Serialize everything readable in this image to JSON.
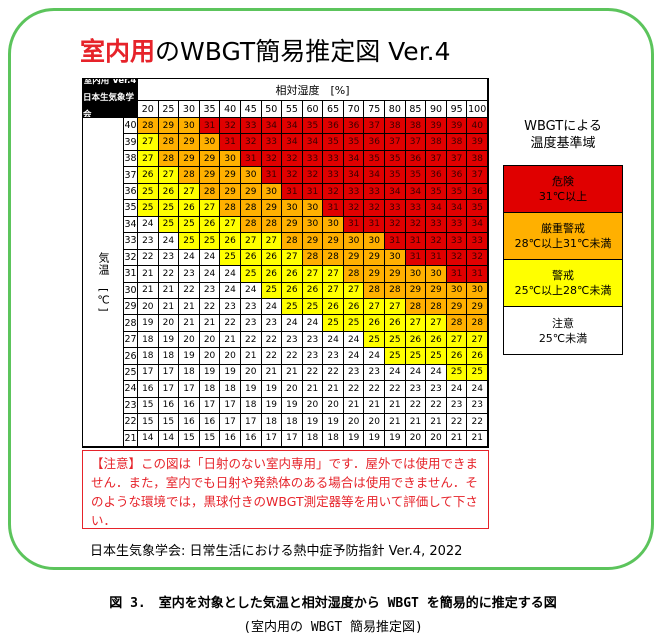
{
  "title": {
    "highlight": "室内用",
    "rest": "のWBGT簡易推定図 Ver.4"
  },
  "table": {
    "corner_line1": "室内用 Ver.4",
    "corner_line2": "日本生気象学会",
    "humidity_label": "相対湿度　[%]",
    "temperature_label": "気温　[℃]",
    "humidity": [
      "20",
      "25",
      "30",
      "35",
      "40",
      "45",
      "50",
      "55",
      "60",
      "65",
      "70",
      "75",
      "80",
      "85",
      "90",
      "95",
      "100"
    ],
    "temperatures": [
      "40",
      "39",
      "38",
      "37",
      "36",
      "35",
      "34",
      "33",
      "32",
      "31",
      "30",
      "29",
      "28",
      "27",
      "26",
      "25",
      "24",
      "23",
      "22",
      "21"
    ],
    "values": [
      [
        28,
        29,
        30,
        31,
        32,
        33,
        34,
        34,
        35,
        36,
        36,
        37,
        38,
        38,
        39,
        39,
        40
      ],
      [
        27,
        28,
        29,
        30,
        31,
        32,
        33,
        34,
        34,
        35,
        35,
        36,
        37,
        37,
        38,
        38,
        39
      ],
      [
        27,
        28,
        29,
        29,
        30,
        31,
        32,
        32,
        33,
        33,
        34,
        35,
        35,
        36,
        37,
        37,
        38
      ],
      [
        26,
        27,
        28,
        29,
        29,
        30,
        31,
        32,
        32,
        33,
        34,
        34,
        35,
        35,
        36,
        36,
        37
      ],
      [
        25,
        26,
        27,
        28,
        29,
        29,
        30,
        31,
        31,
        32,
        33,
        33,
        34,
        34,
        35,
        35,
        36
      ],
      [
        25,
        25,
        26,
        27,
        28,
        28,
        29,
        30,
        30,
        31,
        32,
        32,
        33,
        33,
        34,
        34,
        35
      ],
      [
        24,
        25,
        25,
        26,
        27,
        28,
        28,
        29,
        30,
        30,
        31,
        31,
        32,
        32,
        33,
        33,
        34
      ],
      [
        23,
        24,
        25,
        25,
        26,
        27,
        27,
        28,
        29,
        29,
        30,
        30,
        31,
        31,
        32,
        33,
        33
      ],
      [
        22,
        23,
        24,
        24,
        25,
        26,
        26,
        27,
        28,
        28,
        29,
        29,
        30,
        31,
        31,
        32,
        32
      ],
      [
        21,
        22,
        23,
        24,
        24,
        25,
        26,
        26,
        27,
        27,
        28,
        29,
        29,
        30,
        30,
        31,
        31
      ],
      [
        21,
        21,
        22,
        23,
        24,
        24,
        25,
        26,
        26,
        27,
        27,
        28,
        28,
        29,
        29,
        30,
        30
      ],
      [
        20,
        21,
        21,
        22,
        23,
        23,
        24,
        25,
        25,
        26,
        26,
        27,
        27,
        28,
        28,
        29,
        29
      ],
      [
        19,
        20,
        21,
        21,
        22,
        23,
        23,
        24,
        24,
        25,
        25,
        26,
        26,
        27,
        27,
        28,
        28
      ],
      [
        18,
        19,
        20,
        20,
        21,
        22,
        22,
        23,
        23,
        24,
        24,
        25,
        25,
        26,
        26,
        27,
        27
      ],
      [
        18,
        18,
        19,
        20,
        20,
        21,
        22,
        22,
        23,
        23,
        24,
        24,
        25,
        25,
        25,
        26,
        26
      ],
      [
        17,
        17,
        18,
        19,
        19,
        20,
        21,
        21,
        22,
        22,
        23,
        23,
        24,
        24,
        24,
        25,
        25
      ],
      [
        16,
        17,
        17,
        18,
        18,
        19,
        19,
        20,
        21,
        21,
        22,
        22,
        22,
        23,
        23,
        24,
        24
      ],
      [
        15,
        16,
        16,
        17,
        17,
        18,
        19,
        19,
        20,
        20,
        21,
        21,
        21,
        22,
        22,
        23,
        23
      ],
      [
        15,
        15,
        16,
        16,
        17,
        17,
        18,
        18,
        19,
        19,
        20,
        20,
        21,
        21,
        21,
        22,
        22
      ],
      [
        14,
        14,
        15,
        15,
        16,
        16,
        17,
        17,
        18,
        18,
        19,
        19,
        19,
        20,
        20,
        21,
        21
      ]
    ]
  },
  "legend": {
    "title_line1": "WBGTによる",
    "title_line2": "温度基準域",
    "levels": [
      {
        "name": "危険",
        "range": "31℃以上",
        "color": "#e00000"
      },
      {
        "name": "厳重警戒",
        "range": "28℃以上31℃未満",
        "color": "#ffb000"
      },
      {
        "name": "警戒",
        "range": "25℃以上28℃未満",
        "color": "#ffff00"
      },
      {
        "name": "注意",
        "range": "25℃未満",
        "color": "#ffffff"
      }
    ]
  },
  "note": "【注意】この図は「日射のない室内専用」です．屋外では使用できません．また，室内でも日射や発熱体のある場合は使用できません．そのような環境では，黒球付きのWBGT測定器等を用いて評価して下さい．",
  "source": "日本生気象学会: 日常生活における熱中症予防指針 Ver.4, 2022",
  "caption_line1": "図 3.　室内を対象とした気温と相対湿度から WBGT を簡易的に推定する図",
  "caption_line2": "(室内用の WBGT 簡易推定図)"
}
